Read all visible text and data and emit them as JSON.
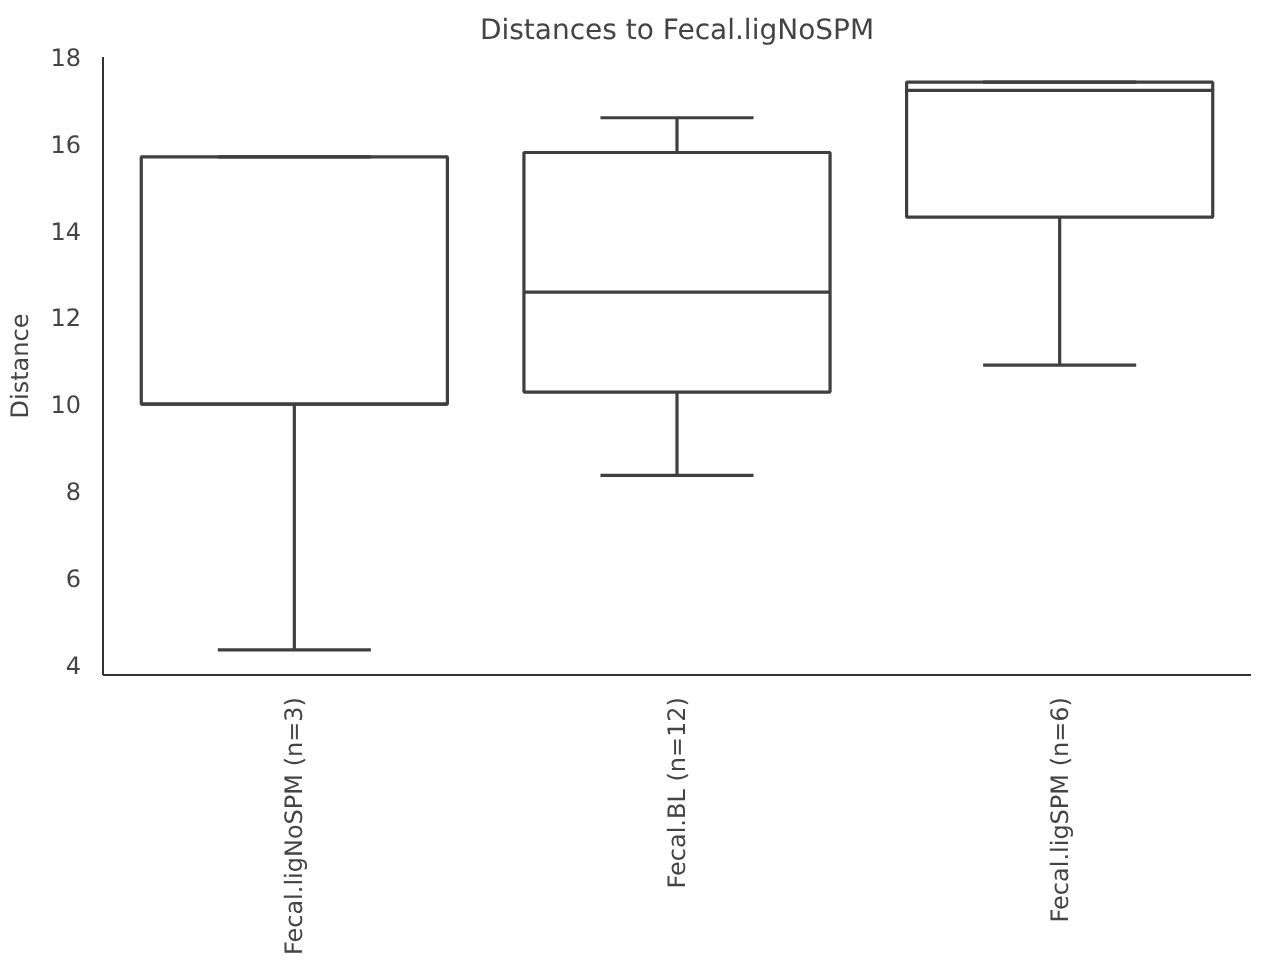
{
  "chart_data": {
    "type": "box",
    "title": "Distances to Fecal.ligNoSPM",
    "ylabel": "Distance",
    "categories": [
      "Fecal.ligNoSPM (n=3)",
      "Fecal.BL (n=12)",
      "Fecal.ligSPM (n=6)"
    ],
    "boxes": [
      {
        "low": 4.34,
        "q1": 10.0,
        "median": 10.0,
        "q3": 15.7,
        "high": 15.7
      },
      {
        "low": 8.36,
        "q1": 10.28,
        "median": 12.58,
        "q3": 15.8,
        "high": 16.6
      },
      {
        "low": 10.9,
        "q1": 14.31,
        "median": 17.23,
        "q3": 17.42,
        "high": 17.42
      }
    ],
    "color": "#3f3f3f",
    "ylim": [
      3.76,
      18
    ],
    "yticks": [
      4,
      6,
      8,
      10,
      12,
      14,
      16,
      18
    ],
    "grid": false
  }
}
